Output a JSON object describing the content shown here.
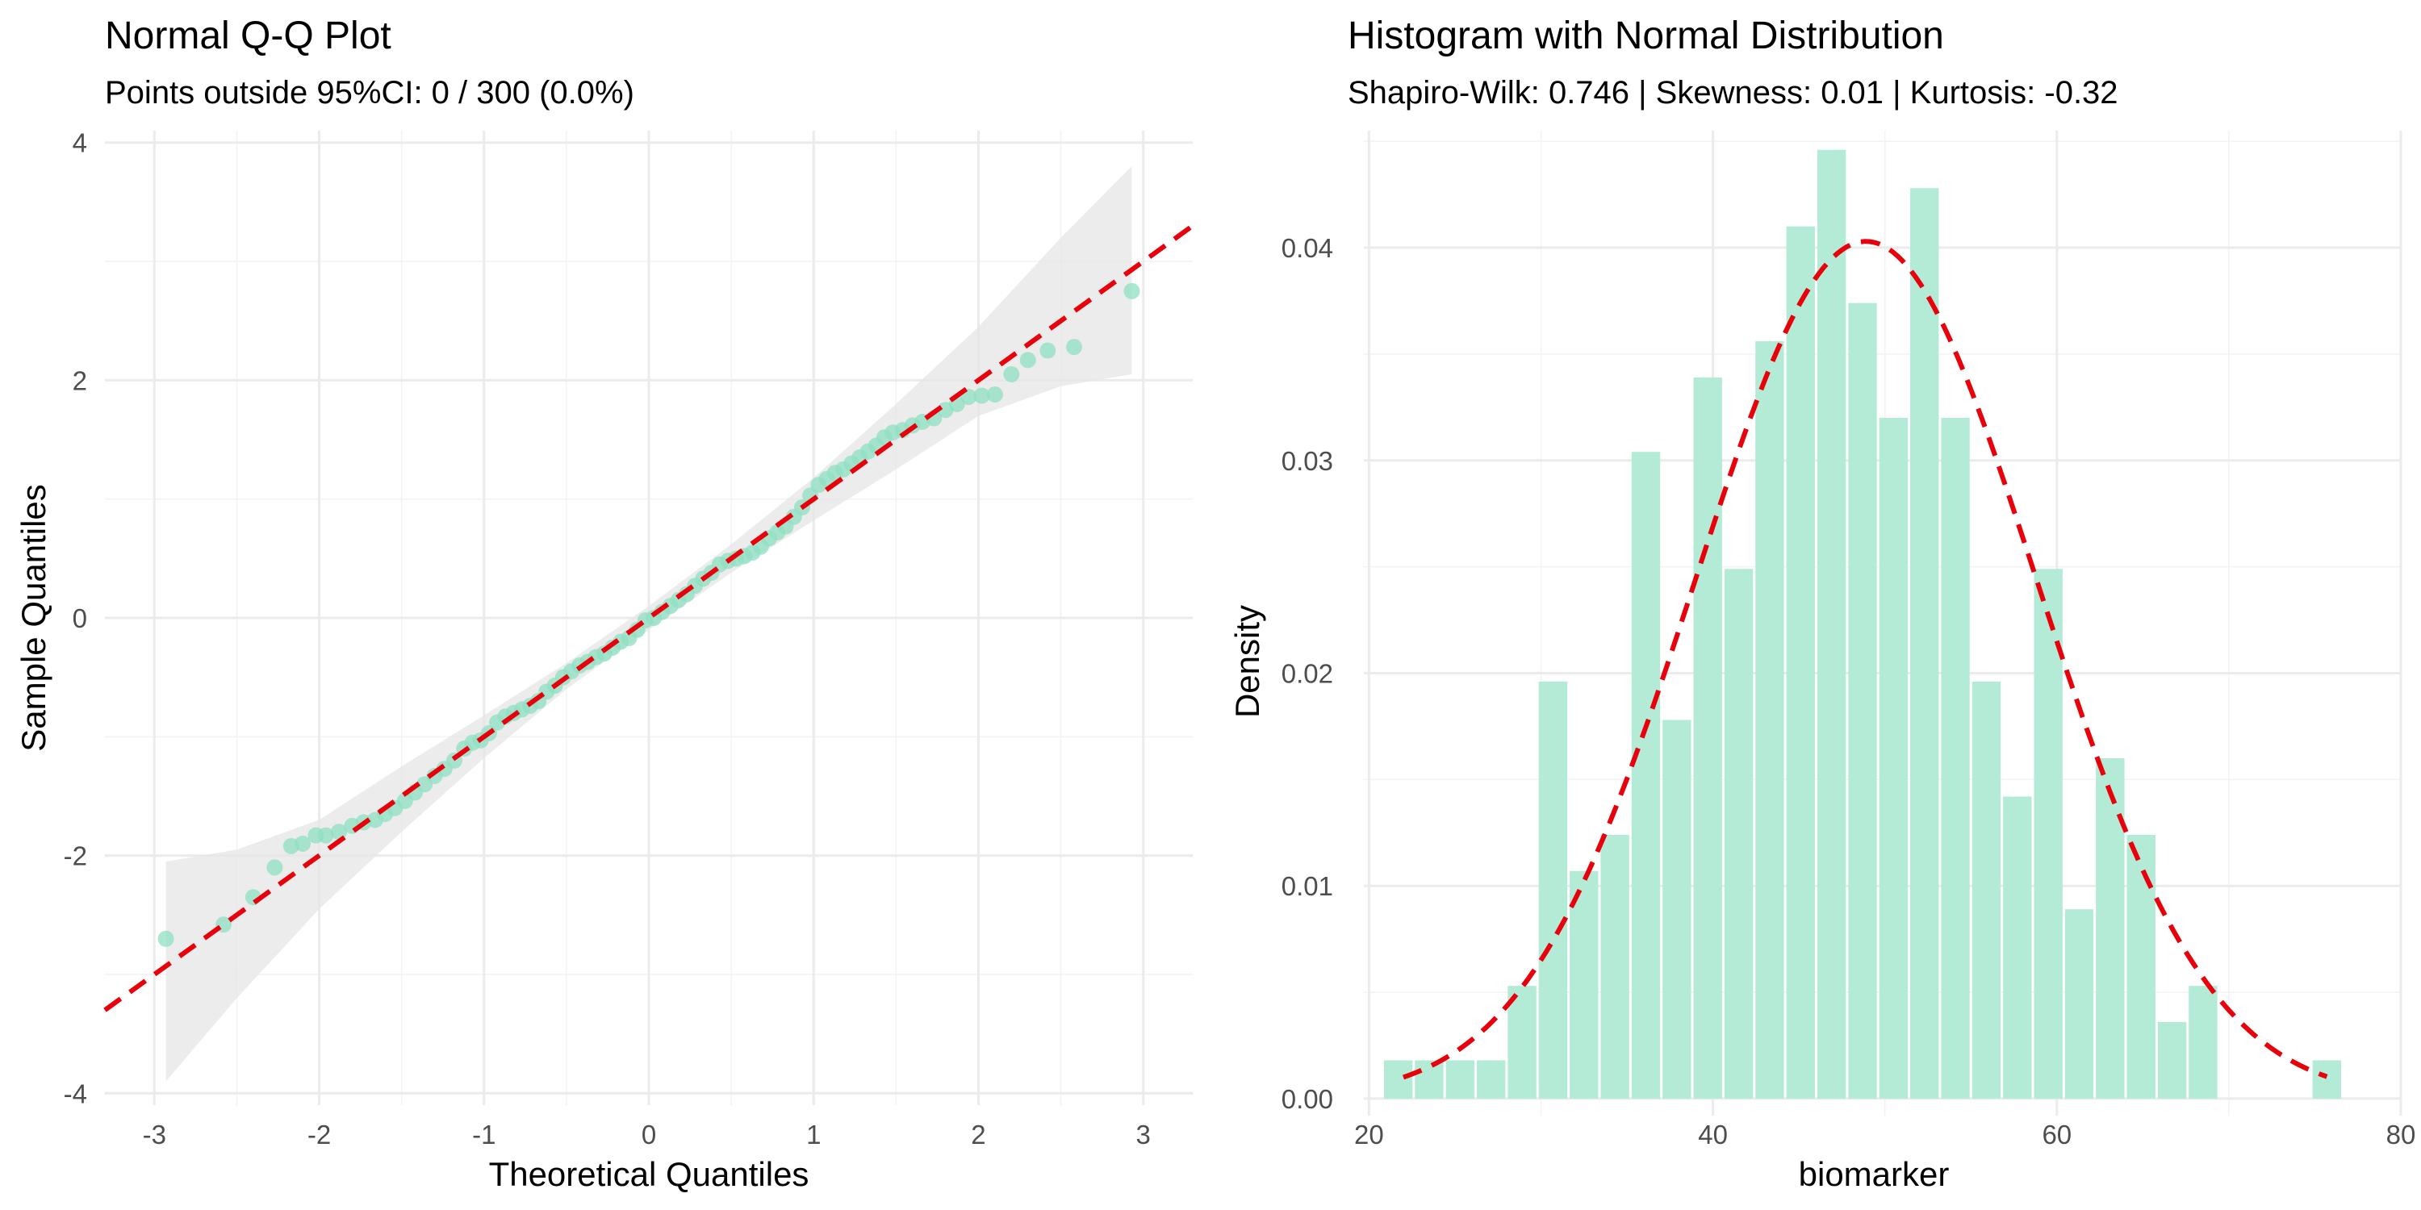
{
  "chart_data": [
    {
      "type": "scatter",
      "title": "Normal Q-Q Plot",
      "subtitle": "Points outside 95%CI: 0 / 300 (0.0%)",
      "xlabel": "Theoretical Quantiles",
      "ylabel": "Sample Quantiles",
      "xlim": [
        -3.3,
        3.3
      ],
      "ylim": [
        -4.1,
        4.1
      ],
      "x_ticks": [
        -3,
        -2,
        -1,
        0,
        1,
        2,
        3
      ],
      "y_ticks": [
        -4,
        -2,
        0,
        2,
        4
      ],
      "x_tick_labels": [
        "-3",
        "-2",
        "-1",
        "0",
        "1",
        "2",
        "3"
      ],
      "y_tick_labels": [
        "-4",
        "-2",
        "0",
        "2",
        "4"
      ],
      "grid": true,
      "point_color": "#8fe0c3",
      "band_color": "#e6e6e6",
      "line_color": "#e8000b",
      "reference_line": {
        "slope": 1.0,
        "intercept": 0.0,
        "style": "dashed"
      },
      "confidence_band": [
        [
          -2.93,
          -3.9,
          -2.05
        ],
        [
          -2.5,
          -3.2,
          -1.95
        ],
        [
          -2.0,
          -2.45,
          -1.7
        ],
        [
          -1.5,
          -1.8,
          -1.25
        ],
        [
          -1.0,
          -1.18,
          -0.82
        ],
        [
          -0.5,
          -0.6,
          -0.38
        ],
        [
          0.0,
          -0.1,
          0.1
        ],
        [
          0.5,
          0.38,
          0.62
        ],
        [
          1.0,
          0.82,
          1.18
        ],
        [
          1.5,
          1.25,
          1.8
        ],
        [
          2.0,
          1.7,
          2.45
        ],
        [
          2.5,
          1.95,
          3.2
        ],
        [
          2.93,
          2.05,
          3.8
        ]
      ],
      "points": [
        [
          -2.93,
          -2.7
        ],
        [
          -2.58,
          -2.58
        ],
        [
          -2.4,
          -2.35
        ],
        [
          -2.27,
          -2.1
        ],
        [
          -2.17,
          -1.92
        ],
        [
          -2.1,
          -1.9
        ],
        [
          -2.02,
          -1.83
        ],
        [
          -1.96,
          -1.83
        ],
        [
          -1.88,
          -1.8
        ],
        [
          -1.8,
          -1.75
        ],
        [
          -1.73,
          -1.72
        ],
        [
          -1.66,
          -1.7
        ],
        [
          -1.6,
          -1.65
        ],
        [
          -1.54,
          -1.6
        ],
        [
          -1.48,
          -1.54
        ],
        [
          -1.42,
          -1.47
        ],
        [
          -1.36,
          -1.4
        ],
        [
          -1.3,
          -1.33
        ],
        [
          -1.24,
          -1.27
        ],
        [
          -1.18,
          -1.2
        ],
        [
          -1.12,
          -1.1
        ],
        [
          -1.07,
          -1.05
        ],
        [
          -1.02,
          -1.03
        ],
        [
          -0.97,
          -0.97
        ],
        [
          -0.92,
          -0.88
        ],
        [
          -0.87,
          -0.83
        ],
        [
          -0.82,
          -0.8
        ],
        [
          -0.77,
          -0.77
        ],
        [
          -0.72,
          -0.74
        ],
        [
          -0.67,
          -0.7
        ],
        [
          -0.62,
          -0.62
        ],
        [
          -0.57,
          -0.57
        ],
        [
          -0.52,
          -0.5
        ],
        [
          -0.47,
          -0.45
        ],
        [
          -0.42,
          -0.4
        ],
        [
          -0.37,
          -0.37
        ],
        [
          -0.32,
          -0.33
        ],
        [
          -0.27,
          -0.3
        ],
        [
          -0.22,
          -0.25
        ],
        [
          -0.17,
          -0.2
        ],
        [
          -0.12,
          -0.17
        ],
        [
          -0.07,
          -0.1
        ],
        [
          -0.02,
          -0.02
        ],
        [
          0.03,
          0.0
        ],
        [
          0.08,
          0.05
        ],
        [
          0.13,
          0.1
        ],
        [
          0.18,
          0.15
        ],
        [
          0.23,
          0.2
        ],
        [
          0.28,
          0.27
        ],
        [
          0.33,
          0.33
        ],
        [
          0.38,
          0.38
        ],
        [
          0.43,
          0.45
        ],
        [
          0.48,
          0.48
        ],
        [
          0.53,
          0.5
        ],
        [
          0.58,
          0.52
        ],
        [
          0.63,
          0.55
        ],
        [
          0.68,
          0.6
        ],
        [
          0.73,
          0.67
        ],
        [
          0.78,
          0.72
        ],
        [
          0.83,
          0.77
        ],
        [
          0.88,
          0.85
        ],
        [
          0.93,
          0.93
        ],
        [
          0.98,
          1.03
        ],
        [
          1.03,
          1.12
        ],
        [
          1.08,
          1.17
        ],
        [
          1.13,
          1.22
        ],
        [
          1.18,
          1.25
        ],
        [
          1.23,
          1.3
        ],
        [
          1.28,
          1.35
        ],
        [
          1.33,
          1.4
        ],
        [
          1.38,
          1.45
        ],
        [
          1.43,
          1.52
        ],
        [
          1.48,
          1.56
        ],
        [
          1.54,
          1.58
        ],
        [
          1.6,
          1.62
        ],
        [
          1.66,
          1.65
        ],
        [
          1.73,
          1.68
        ],
        [
          1.8,
          1.75
        ],
        [
          1.87,
          1.8
        ],
        [
          1.94,
          1.86
        ],
        [
          2.02,
          1.87
        ],
        [
          2.1,
          1.88
        ],
        [
          2.2,
          2.05
        ],
        [
          2.3,
          2.17
        ],
        [
          2.42,
          2.25
        ],
        [
          2.58,
          2.28
        ],
        [
          2.93,
          2.75
        ]
      ]
    },
    {
      "type": "bar",
      "title": "Histogram with Normal Distribution",
      "subtitle": "Shapiro-Wilk: 0.746 | Skewness: 0.01 | Kurtosis: -0.32",
      "xlabel": "biomarker",
      "ylabel": "Density",
      "xlim": [
        19.7,
        80.0
      ],
      "ylim": [
        -0.0008,
        0.0455
      ],
      "x_ticks": [
        20,
        40,
        60,
        80
      ],
      "y_ticks": [
        0.0,
        0.01,
        0.02,
        0.03,
        0.04
      ],
      "x_tick_labels": [
        "20",
        "40",
        "60",
        "80"
      ],
      "y_tick_labels": [
        "0.00",
        "0.01",
        "0.02",
        "0.03",
        "0.04"
      ],
      "grid": true,
      "bar_color": "#b3ebd7",
      "curve_color": "#e8000b",
      "bin_width": 1.8,
      "bin_centers": [
        21.7,
        23.5,
        25.3,
        27.1,
        28.9,
        30.7,
        32.5,
        34.3,
        36.1,
        37.9,
        39.7,
        41.5,
        43.3,
        45.1,
        46.9,
        48.7,
        50.5,
        52.3,
        54.1,
        55.9,
        57.7,
        59.5,
        61.3,
        63.1,
        64.9,
        66.7,
        68.5,
        70.3,
        72.1,
        73.9,
        75.7
      ],
      "values": [
        0.0018,
        0.0018,
        0.0018,
        0.0018,
        0.0053,
        0.0196,
        0.0107,
        0.0124,
        0.0304,
        0.0178,
        0.0339,
        0.0249,
        0.0356,
        0.041,
        0.0446,
        0.0374,
        0.032,
        0.0428,
        0.032,
        0.0196,
        0.0142,
        0.0249,
        0.0089,
        0.016,
        0.0124,
        0.0036,
        0.0053,
        0.0,
        0.0,
        0.0,
        0.0018
      ],
      "normal_curve": {
        "mean": 48.9,
        "sd": 9.9,
        "style": "dashed",
        "x_range": [
          22.0,
          75.7
        ]
      }
    }
  ]
}
